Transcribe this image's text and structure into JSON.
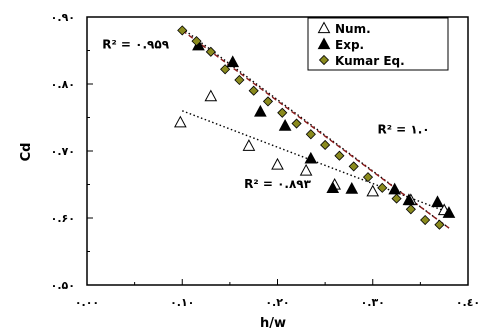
{
  "chart_data": {
    "type": "scatter",
    "xlabel": "h/w",
    "ylabel": "Cd",
    "xlim": [
      0,
      0.4
    ],
    "ylim": [
      0.5,
      0.9
    ],
    "grid": false,
    "legend_position": "top-right",
    "x_ticks": [
      {
        "value": 0.0,
        "label": "٠.٠٠"
      },
      {
        "value": 0.1,
        "label": "٠.١٠"
      },
      {
        "value": 0.2,
        "label": "٠.٢٠"
      },
      {
        "value": 0.3,
        "label": "٠.٣٠"
      },
      {
        "value": 0.4,
        "label": "٠.٤٠"
      }
    ],
    "y_ticks": [
      {
        "value": 0.5,
        "label": "٠.۵٠"
      },
      {
        "value": 0.6,
        "label": "٠.۶٠"
      },
      {
        "value": 0.7,
        "label": "٠.٧٠"
      },
      {
        "value": 0.8,
        "label": "٠.٨٠"
      },
      {
        "value": 0.9,
        "label": "٠.٩٠"
      }
    ],
    "series": [
      {
        "name": "Num.",
        "marker": "triangle-open",
        "color": "#000000",
        "x": [
          0.098,
          0.13,
          0.17,
          0.2,
          0.23,
          0.26,
          0.3,
          0.34,
          0.375
        ],
        "y": [
          0.743,
          0.782,
          0.708,
          0.68,
          0.671,
          0.65,
          0.64,
          0.627,
          0.612
        ]
      },
      {
        "name": "Exp.",
        "marker": "triangle-filled",
        "color": "#000000",
        "x": [
          0.117,
          0.153,
          0.182,
          0.208,
          0.235,
          0.258,
          0.278,
          0.323,
          0.338,
          0.368,
          0.38
        ],
        "y": [
          0.858,
          0.833,
          0.759,
          0.738,
          0.689,
          0.645,
          0.644,
          0.643,
          0.627,
          0.624,
          0.608
        ]
      },
      {
        "name": "Kumar Eq.",
        "marker": "diamond",
        "color": "#8a8a1e",
        "x": [
          0.1,
          0.115,
          0.13,
          0.145,
          0.16,
          0.175,
          0.19,
          0.205,
          0.22,
          0.235,
          0.25,
          0.265,
          0.28,
          0.295,
          0.31,
          0.325,
          0.34,
          0.355,
          0.37
        ],
        "y": [
          0.88,
          0.864,
          0.848,
          0.822,
          0.806,
          0.79,
          0.774,
          0.757,
          0.741,
          0.725,
          0.709,
          0.693,
          0.677,
          0.661,
          0.645,
          0.629,
          0.613,
          0.597,
          0.59
        ]
      }
    ],
    "trendlines": [
      {
        "series": "Num.",
        "style": "dotted",
        "color": "#000000",
        "from": [
          0.1,
          0.76
        ],
        "to": [
          0.38,
          0.608
        ]
      },
      {
        "series": "Exp.",
        "style": "dotted",
        "color": "#000000",
        "from": [
          0.1,
          0.883
        ],
        "to": [
          0.38,
          0.585
        ]
      },
      {
        "series": "Kumar Eq.",
        "style": "dashed",
        "color": "#8b1a1a",
        "from": [
          0.1,
          0.88
        ],
        "to": [
          0.38,
          0.585
        ]
      }
    ],
    "annotations": [
      {
        "text": "R² = ٠.٩۵٩",
        "x": 0.016,
        "y": 0.853
      },
      {
        "text": "R² = ١.٠",
        "x": 0.305,
        "y": 0.726
      },
      {
        "text": "R² = ٠.٨٩٣",
        "x": 0.165,
        "y": 0.645
      }
    ]
  }
}
